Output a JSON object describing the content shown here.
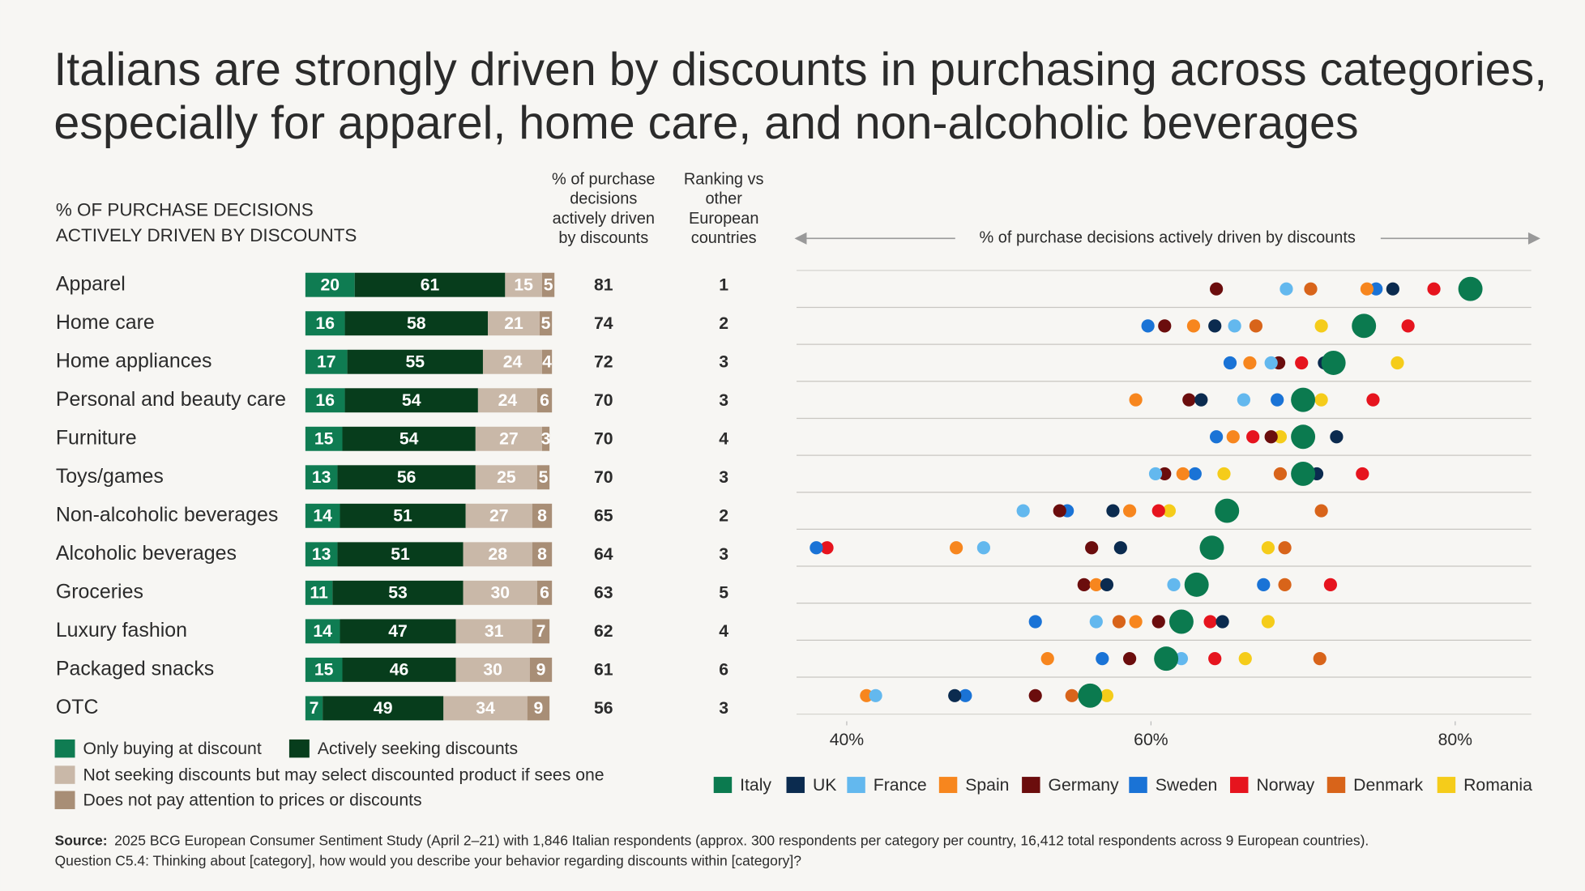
{
  "title": [
    "Italians are strongly driven by discounts in purchasing across categories,",
    "especially for apparel, home care, and non-alcoholic beverages"
  ],
  "chart_data": [
    {
      "type": "stacked-bar",
      "y_label": [
        "% OF PURCHASE DECISIONS",
        "ACTIVELY DRIVEN BY DISCOUNTS"
      ],
      "categories": [
        "Apparel",
        "Home care",
        "Home appliances",
        "Personal and beauty care",
        "Furniture",
        "Toys/games",
        "Non-alcoholic beverages",
        "Alcoholic beverages",
        "Groceries",
        "Luxury fashion",
        "Packaged snacks",
        "OTC"
      ],
      "xlim": [
        0,
        100
      ],
      "series": [
        {
          "name": "Only buying at discount",
          "color": "#0f7c52",
          "values": [
            20,
            16,
            17,
            16,
            15,
            13,
            14,
            13,
            11,
            14,
            15,
            7
          ]
        },
        {
          "name": "Actively seeking discounts",
          "color": "#073d1c",
          "values": [
            61,
            58,
            55,
            54,
            54,
            56,
            51,
            51,
            53,
            47,
            46,
            49
          ]
        },
        {
          "name": "Not seeking discounts but may select discounted product if sees one",
          "color": "#c9b8a8",
          "values": [
            15,
            21,
            24,
            24,
            27,
            25,
            27,
            28,
            30,
            31,
            30,
            34
          ]
        },
        {
          "name": "Does not pay attention to prices or discounts",
          "color": "#a88e76",
          "values": [
            5,
            5,
            4,
            6,
            3,
            5,
            8,
            8,
            6,
            7,
            9,
            9
          ]
        }
      ],
      "totals": {
        "label": [
          "% of purchase",
          "decisions",
          "actively driven",
          "by discounts"
        ],
        "values": [
          81,
          74,
          72,
          70,
          70,
          70,
          65,
          64,
          63,
          62,
          61,
          56
        ]
      },
      "ranking": {
        "label": [
          "Ranking vs",
          "other",
          "European",
          "countries"
        ],
        "values": [
          1,
          2,
          3,
          3,
          4,
          3,
          2,
          3,
          5,
          4,
          6,
          3
        ]
      }
    },
    {
      "type": "dot",
      "xlabel": "% of purchase decisions actively driven by discounts",
      "xlim": [
        36.7,
        85.0
      ],
      "xticks": [
        {
          "value": 40,
          "label": "40%"
        },
        {
          "value": 60,
          "label": "60%"
        },
        {
          "value": 80,
          "label": "80%"
        }
      ],
      "series": [
        {
          "name": "Italy",
          "color": "#0b7a4f",
          "values": [
            81,
            74,
            72,
            70,
            70,
            70,
            65,
            64,
            63,
            62,
            61,
            56
          ]
        },
        {
          "name": "UK",
          "color": "#0b2b4f",
          "values": [
            75.9,
            64.2,
            71.4,
            63.3,
            72.2,
            70.9,
            57.5,
            58.0,
            57.1,
            64.7,
            null,
            47.1
          ]
        },
        {
          "name": "France",
          "color": "#63b8ee",
          "values": [
            68.9,
            65.5,
            67.9,
            66.1,
            null,
            60.3,
            51.6,
            49.0,
            61.5,
            56.4,
            62.0,
            41.9
          ]
        },
        {
          "name": "Spain",
          "color": "#f7861e",
          "values": [
            74.2,
            62.8,
            66.5,
            59.0,
            65.4,
            62.1,
            58.6,
            47.2,
            56.4,
            59.0,
            53.2,
            41.3
          ]
        },
        {
          "name": "Germany",
          "color": "#6b0d0d",
          "values": [
            64.3,
            60.9,
            68.4,
            62.5,
            67.9,
            60.9,
            54.0,
            56.1,
            55.6,
            60.5,
            58.6,
            52.4
          ]
        },
        {
          "name": "Sweden",
          "color": "#1a73d6",
          "values": [
            74.8,
            59.8,
            65.2,
            68.3,
            64.3,
            62.9,
            54.5,
            38.0,
            67.4,
            52.4,
            56.8,
            47.8
          ]
        },
        {
          "name": "Norway",
          "color": "#e6141e",
          "values": [
            78.6,
            76.9,
            69.9,
            74.6,
            66.7,
            73.9,
            60.5,
            38.7,
            71.8,
            63.9,
            64.2,
            null
          ]
        },
        {
          "name": "Denmark",
          "color": "#d8641a",
          "values": [
            70.5,
            66.9,
            null,
            null,
            null,
            68.5,
            71.2,
            68.8,
            68.8,
            57.9,
            71.1,
            54.8
          ]
        },
        {
          "name": "Romania",
          "color": "#f5cc1a",
          "values": [
            null,
            71.2,
            76.2,
            71.2,
            68.5,
            64.8,
            61.2,
            67.7,
            null,
            67.7,
            66.2,
            57.1
          ]
        }
      ]
    }
  ],
  "source_label": "Source:",
  "source": "2025 BCG European Consumer Sentiment Study (April 2–21) with 1,846 Italian respondents (approx. 300 respondents per category per country, 16,412 total respondents across 9 European countries).",
  "note": "Question C5.4: Thinking about [category], how would you describe your behavior regarding discounts within [category]?"
}
